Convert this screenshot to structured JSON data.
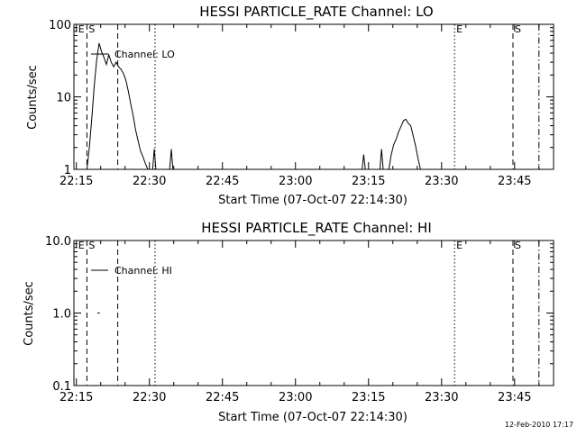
{
  "footer": {
    "stamp": "12-Feb-2010 17:17"
  },
  "colors": {
    "background": "#ffffff",
    "foreground": "#000000"
  },
  "chart_data": [
    {
      "type": "line",
      "title": "HESSI PARTICLE_RATE Channel: LO",
      "xlabel": "Start Time (07-Oct-07 22:14:30)",
      "ylabel": "Counts/sec",
      "yscale": "log",
      "ylim": [
        1,
        100
      ],
      "xlim": [
        "22:14:30",
        "23:53:00"
      ],
      "x_ticks": [
        "22:15",
        "22:30",
        "22:45",
        "23:00",
        "23:15",
        "23:30",
        "23:45"
      ],
      "y_ticks": [
        "1",
        "10",
        "100"
      ],
      "legend": {
        "entries": [
          "Channel: LO"
        ],
        "placement": "top-left"
      },
      "grid": false,
      "markers": [
        {
          "label": "E",
          "time": "22:15:00",
          "style": "none"
        },
        {
          "label": "S",
          "time": "22:17:10",
          "style": "dashed"
        },
        {
          "label": "",
          "time": "22:23:30",
          "style": "dashed"
        },
        {
          "label": "",
          "time": "22:31:10",
          "style": "dotted"
        },
        {
          "label": "E",
          "time": "23:32:40",
          "style": "dotted"
        },
        {
          "label": "S",
          "time": "23:44:40",
          "style": "dashed"
        },
        {
          "label": "",
          "time": "23:50:00",
          "style": "dashdot"
        }
      ],
      "series": [
        {
          "name": "Channel: LO",
          "segments": [
            [
              [
                "22:17:10",
                1
              ],
              [
                "22:17:40",
                2
              ],
              [
                "22:18:10",
                5
              ],
              [
                "22:18:40",
                14
              ],
              [
                "22:19:10",
                32
              ],
              [
                "22:19:40",
                55
              ],
              [
                "22:20:10",
                42
              ],
              [
                "22:20:40",
                35
              ],
              [
                "22:21:10",
                28
              ],
              [
                "22:21:40",
                38
              ],
              [
                "22:22:10",
                30
              ],
              [
                "22:22:40",
                26
              ],
              [
                "22:23:10",
                30
              ],
              [
                "22:23:40",
                26
              ],
              [
                "22:24:10",
                24
              ],
              [
                "22:24:40",
                21
              ],
              [
                "22:25:10",
                17
              ],
              [
                "22:25:40",
                12
              ],
              [
                "22:26:10",
                8
              ],
              [
                "22:26:40",
                5.5
              ],
              [
                "22:27:10",
                3.5
              ],
              [
                "22:27:40",
                2.5
              ],
              [
                "22:28:10",
                1.8
              ],
              [
                "22:28:40",
                1.5
              ],
              [
                "22:29:10",
                1.2
              ],
              [
                "22:29:40",
                1
              ]
            ],
            [
              [
                "22:30:40",
                1
              ],
              [
                "22:31:00",
                1.9
              ],
              [
                "22:31:20",
                1
              ]
            ],
            [
              [
                "22:34:10",
                1
              ],
              [
                "22:34:30",
                1.9
              ],
              [
                "22:34:50",
                1
              ]
            ],
            [
              [
                "23:13:40",
                1
              ],
              [
                "23:14:00",
                1.6
              ],
              [
                "23:14:20",
                1
              ]
            ],
            [
              [
                "23:17:20",
                1
              ],
              [
                "23:17:40",
                1.9
              ],
              [
                "23:18:00",
                1
              ]
            ],
            [
              [
                "23:19:10",
                1
              ],
              [
                "23:19:40",
                1.6
              ],
              [
                "23:20:10",
                2.2
              ],
              [
                "23:20:40",
                2.6
              ],
              [
                "23:21:10",
                3.3
              ],
              [
                "23:21:40",
                3.9
              ],
              [
                "23:22:10",
                4.7
              ],
              [
                "23:22:40",
                4.9
              ],
              [
                "23:23:10",
                4.3
              ],
              [
                "23:23:40",
                4.0
              ],
              [
                "23:24:10",
                2.9
              ],
              [
                "23:24:40",
                2.1
              ],
              [
                "23:25:10",
                1.4
              ],
              [
                "23:25:40",
                1
              ]
            ]
          ]
        }
      ]
    },
    {
      "type": "line",
      "title": "HESSI PARTICLE_RATE Channel: HI",
      "xlabel": "Start Time (07-Oct-07 22:14:30)",
      "ylabel": "Counts/sec",
      "yscale": "log",
      "ylim": [
        0.1,
        10
      ],
      "xlim": [
        "22:14:30",
        "23:53:00"
      ],
      "x_ticks": [
        "22:15",
        "22:30",
        "22:45",
        "23:00",
        "23:15",
        "23:30",
        "23:45"
      ],
      "y_ticks": [
        "0.1",
        "1.0",
        "10.0"
      ],
      "legend": {
        "entries": [
          "Channel: HI"
        ],
        "placement": "top-left"
      },
      "grid": false,
      "markers": [
        {
          "label": "E",
          "time": "22:15:00",
          "style": "none"
        },
        {
          "label": "S",
          "time": "22:17:10",
          "style": "dashed"
        },
        {
          "label": "",
          "time": "22:23:30",
          "style": "dashed"
        },
        {
          "label": "",
          "time": "22:31:10",
          "style": "dotted"
        },
        {
          "label": "E",
          "time": "23:32:40",
          "style": "dotted"
        },
        {
          "label": "S",
          "time": "23:44:40",
          "style": "dashed"
        },
        {
          "label": "",
          "time": "23:50:00",
          "style": "dashdot"
        }
      ],
      "series": [
        {
          "name": "Channel: HI",
          "segments": [
            [
              [
                "22:19:20",
                1.0
              ],
              [
                "22:19:50",
                1.0
              ]
            ]
          ]
        }
      ]
    }
  ]
}
